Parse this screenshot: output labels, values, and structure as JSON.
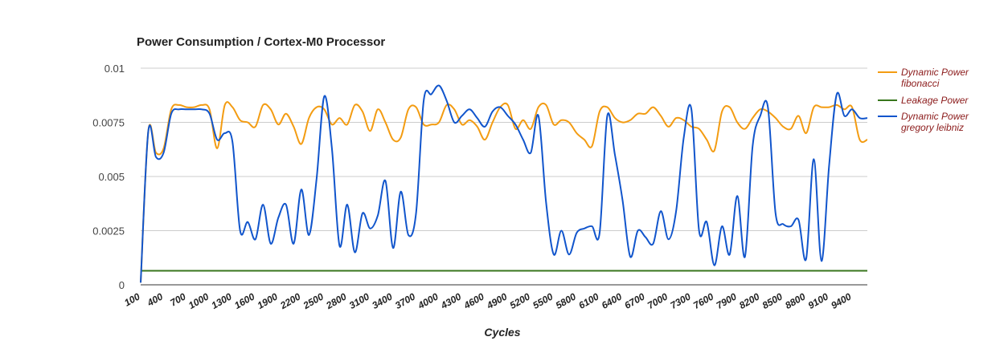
{
  "chart_data": {
    "type": "line",
    "title": "Power Consumption / Cortex-M0 Processor",
    "xlabel": "Cycles",
    "ylabel": "",
    "ylim": [
      0,
      0.01
    ],
    "yticks": [
      "0",
      "0.0025",
      "0.005",
      "0.0075",
      "0.01"
    ],
    "ytick_values": [
      0,
      0.0025,
      0.005,
      0.0075,
      0.01
    ],
    "xlim": [
      100,
      9600
    ],
    "xticks": [
      100,
      400,
      700,
      1000,
      1300,
      1600,
      1900,
      2200,
      2500,
      2800,
      3100,
      3400,
      3700,
      4000,
      4300,
      4600,
      4900,
      5200,
      5500,
      5800,
      6100,
      6400,
      6700,
      7000,
      7300,
      7600,
      7900,
      8200,
      8500,
      8800,
      9100,
      9400
    ],
    "grid": true,
    "legend_position": "right",
    "series": [
      {
        "name": [
          "Dynamic Power",
          "fibonacci"
        ],
        "color": "#f39c12",
        "x": [
          100,
          200,
          300,
          400,
          500,
          600,
          700,
          800,
          900,
          1000,
          1100,
          1200,
          1300,
          1400,
          1500,
          1600,
          1700,
          1800,
          1900,
          2000,
          2100,
          2200,
          2300,
          2400,
          2500,
          2600,
          2700,
          2800,
          2900,
          3000,
          3100,
          3200,
          3300,
          3400,
          3500,
          3600,
          3700,
          3800,
          3900,
          4000,
          4100,
          4200,
          4300,
          4400,
          4500,
          4600,
          4700,
          4800,
          4900,
          5000,
          5100,
          5200,
          5300,
          5400,
          5500,
          5600,
          5700,
          5800,
          5900,
          6000,
          6100,
          6200,
          6300,
          6400,
          6500,
          6600,
          6700,
          6800,
          6900,
          7000,
          7100,
          7200,
          7300,
          7400,
          7500,
          7600,
          7700,
          7800,
          7900,
          8000,
          8100,
          8200,
          8300,
          8400,
          8500,
          8600,
          8700,
          8800,
          8900,
          9000,
          9100,
          9200,
          9300,
          9400,
          9500,
          9600
        ],
        "y": [
          0.0001,
          0.0071,
          0.0061,
          0.0063,
          0.0081,
          0.0083,
          0.0082,
          0.0082,
          0.0083,
          0.0081,
          0.0063,
          0.0083,
          0.0082,
          0.0076,
          0.0075,
          0.0073,
          0.0083,
          0.0081,
          0.0074,
          0.0079,
          0.0073,
          0.0065,
          0.0077,
          0.0082,
          0.0081,
          0.0074,
          0.0077,
          0.0074,
          0.0083,
          0.008,
          0.0071,
          0.0081,
          0.0075,
          0.0067,
          0.0068,
          0.0081,
          0.0082,
          0.0074,
          0.0074,
          0.0075,
          0.0083,
          0.0081,
          0.0074,
          0.0076,
          0.0073,
          0.0067,
          0.0075,
          0.0082,
          0.0083,
          0.0072,
          0.0076,
          0.0072,
          0.0082,
          0.0083,
          0.0074,
          0.0076,
          0.0075,
          0.007,
          0.0067,
          0.0064,
          0.008,
          0.0082,
          0.0077,
          0.0075,
          0.0076,
          0.0079,
          0.0079,
          0.0082,
          0.0078,
          0.0073,
          0.0077,
          0.0076,
          0.0073,
          0.0072,
          0.0067,
          0.0062,
          0.008,
          0.0082,
          0.0075,
          0.0072,
          0.0077,
          0.0081,
          0.008,
          0.0077,
          0.0073,
          0.0072,
          0.0078,
          0.007,
          0.0082,
          0.0082,
          0.0082,
          0.0083,
          0.0081,
          0.0082,
          0.0067,
          0.0067
        ]
      },
      {
        "name": [
          "Leakage Power"
        ],
        "color": "#38761d",
        "x": [
          100,
          9600
        ],
        "y": [
          0.00065,
          0.00065
        ]
      },
      {
        "name": [
          "Dynamic Power",
          "gregory leibniz"
        ],
        "color": "#1155cc",
        "x": [
          100,
          200,
          300,
          400,
          500,
          600,
          700,
          800,
          900,
          1000,
          1100,
          1200,
          1300,
          1400,
          1500,
          1600,
          1700,
          1800,
          1900,
          2000,
          2100,
          2200,
          2300,
          2400,
          2500,
          2600,
          2700,
          2800,
          2900,
          3000,
          3100,
          3200,
          3300,
          3400,
          3500,
          3600,
          3700,
          3800,
          3900,
          4000,
          4100,
          4200,
          4300,
          4400,
          4500,
          4600,
          4700,
          4800,
          4900,
          5000,
          5100,
          5200,
          5300,
          5400,
          5500,
          5600,
          5700,
          5800,
          5900,
          6000,
          6100,
          6200,
          6300,
          6400,
          6500,
          6600,
          6700,
          6800,
          6900,
          7000,
          7100,
          7200,
          7300,
          7400,
          7500,
          7600,
          7700,
          7800,
          7900,
          8000,
          8100,
          8200,
          8300,
          8400,
          8500,
          8600,
          8700,
          8800,
          8900,
          9000,
          9100,
          9200,
          9300,
          9400,
          9500,
          9600
        ],
        "y": [
          0.0001,
          0.0071,
          0.0059,
          0.0061,
          0.0079,
          0.0081,
          0.0081,
          0.0081,
          0.0081,
          0.0079,
          0.0067,
          0.007,
          0.0066,
          0.0025,
          0.0029,
          0.0021,
          0.0037,
          0.0019,
          0.0031,
          0.0037,
          0.0019,
          0.0044,
          0.0023,
          0.0049,
          0.0087,
          0.0063,
          0.0018,
          0.0037,
          0.0015,
          0.0033,
          0.0026,
          0.0032,
          0.0048,
          0.0017,
          0.0043,
          0.0023,
          0.0033,
          0.0085,
          0.0088,
          0.0092,
          0.0085,
          0.0075,
          0.0078,
          0.0081,
          0.0077,
          0.0073,
          0.008,
          0.0082,
          0.0078,
          0.0074,
          0.0067,
          0.0061,
          0.0078,
          0.0038,
          0.0014,
          0.0025,
          0.0014,
          0.0024,
          0.0026,
          0.0027,
          0.0024,
          0.0078,
          0.006,
          0.0039,
          0.0013,
          0.0025,
          0.0022,
          0.0019,
          0.0034,
          0.0021,
          0.0034,
          0.0068,
          0.0081,
          0.0025,
          0.0029,
          0.0009,
          0.0027,
          0.0014,
          0.0041,
          0.0013,
          0.0064,
          0.0078,
          0.0082,
          0.0033,
          0.0028,
          0.0027,
          0.003,
          0.0012,
          0.0058,
          0.0011,
          0.0055,
          0.0088,
          0.0078,
          0.0081,
          0.0077,
          0.0077
        ]
      }
    ]
  }
}
